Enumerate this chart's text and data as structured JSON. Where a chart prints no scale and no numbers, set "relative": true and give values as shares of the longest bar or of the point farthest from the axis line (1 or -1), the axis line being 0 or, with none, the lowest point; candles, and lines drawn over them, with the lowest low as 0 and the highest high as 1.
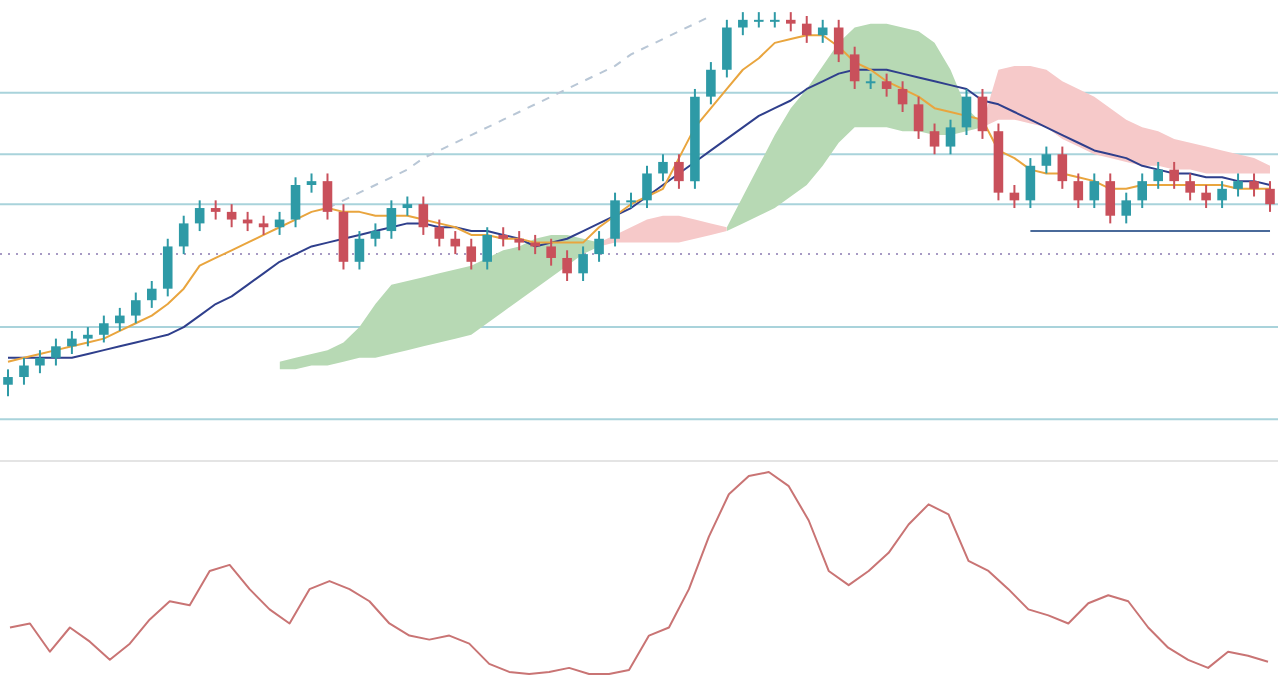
{
  "chart_data": [
    {
      "type": "candlestick",
      "relative": true,
      "tick_labels": false,
      "grid": false,
      "legend": false,
      "categories": [
        null,
        null,
        null,
        null,
        null,
        null,
        null,
        null,
        null,
        null,
        null,
        null,
        null,
        null,
        null,
        null,
        null,
        null,
        null,
        null,
        null,
        null,
        null,
        null,
        null,
        null,
        null,
        null,
        null,
        null,
        null,
        null,
        null,
        null,
        null,
        null,
        null,
        null,
        null,
        null,
        null,
        null,
        null,
        null,
        null,
        null,
        null,
        null,
        null,
        null,
        null,
        null,
        null,
        null,
        null,
        null,
        null,
        null,
        null,
        null,
        null,
        null,
        null,
        null,
        null,
        null,
        null,
        null,
        null,
        null,
        null,
        null,
        null,
        null,
        null,
        null,
        null,
        null,
        null,
        null
      ],
      "ohlc": [
        [
          0.03,
          0.07,
          0.0,
          0.05
        ],
        [
          0.05,
          0.1,
          0.03,
          0.08
        ],
        [
          0.08,
          0.12,
          0.06,
          0.1
        ],
        [
          0.1,
          0.15,
          0.08,
          0.13
        ],
        [
          0.13,
          0.17,
          0.11,
          0.15
        ],
        [
          0.15,
          0.18,
          0.13,
          0.16
        ],
        [
          0.16,
          0.21,
          0.14,
          0.19
        ],
        [
          0.19,
          0.23,
          0.17,
          0.21
        ],
        [
          0.21,
          0.27,
          0.19,
          0.25
        ],
        [
          0.25,
          0.3,
          0.23,
          0.28
        ],
        [
          0.28,
          0.41,
          0.26,
          0.39
        ],
        [
          0.39,
          0.47,
          0.37,
          0.45
        ],
        [
          0.45,
          0.51,
          0.43,
          0.49
        ],
        [
          0.49,
          0.51,
          0.46,
          0.48
        ],
        [
          0.48,
          0.5,
          0.44,
          0.46
        ],
        [
          0.46,
          0.48,
          0.43,
          0.45
        ],
        [
          0.45,
          0.47,
          0.42,
          0.44
        ],
        [
          0.44,
          0.48,
          0.42,
          0.46
        ],
        [
          0.46,
          0.57,
          0.44,
          0.55
        ],
        [
          0.55,
          0.58,
          0.53,
          0.56
        ],
        [
          0.56,
          0.58,
          0.46,
          0.48
        ],
        [
          0.48,
          0.5,
          0.33,
          0.35
        ],
        [
          0.35,
          0.43,
          0.33,
          0.41
        ],
        [
          0.41,
          0.45,
          0.39,
          0.43
        ],
        [
          0.43,
          0.51,
          0.41,
          0.49
        ],
        [
          0.49,
          0.52,
          0.47,
          0.5
        ],
        [
          0.5,
          0.52,
          0.42,
          0.44
        ],
        [
          0.44,
          0.46,
          0.39,
          0.41
        ],
        [
          0.41,
          0.43,
          0.37,
          0.39
        ],
        [
          0.39,
          0.41,
          0.33,
          0.35
        ],
        [
          0.35,
          0.44,
          0.33,
          0.42
        ],
        [
          0.42,
          0.44,
          0.39,
          0.41
        ],
        [
          0.41,
          0.43,
          0.38,
          0.4
        ],
        [
          0.4,
          0.42,
          0.37,
          0.39
        ],
        [
          0.39,
          0.41,
          0.34,
          0.36
        ],
        [
          0.36,
          0.38,
          0.3,
          0.32
        ],
        [
          0.32,
          0.39,
          0.3,
          0.37
        ],
        [
          0.37,
          0.43,
          0.35,
          0.41
        ],
        [
          0.41,
          0.53,
          0.39,
          0.51
        ],
        [
          0.51,
          0.53,
          0.49,
          0.51
        ],
        [
          0.51,
          0.6,
          0.49,
          0.58
        ],
        [
          0.58,
          0.63,
          0.56,
          0.61
        ],
        [
          0.61,
          0.63,
          0.54,
          0.56
        ],
        [
          0.56,
          0.8,
          0.54,
          0.78
        ],
        [
          0.78,
          0.87,
          0.76,
          0.85
        ],
        [
          0.85,
          0.98,
          0.83,
          0.96
        ],
        [
          0.96,
          1.0,
          0.94,
          0.98
        ],
        [
          0.98,
          1.0,
          0.96,
          0.98
        ],
        [
          0.98,
          1.0,
          0.96,
          0.98
        ],
        [
          0.98,
          1.0,
          0.95,
          0.97
        ],
        [
          0.97,
          0.99,
          0.92,
          0.94
        ],
        [
          0.94,
          0.98,
          0.92,
          0.96
        ],
        [
          0.96,
          0.98,
          0.87,
          0.89
        ],
        [
          0.89,
          0.91,
          0.8,
          0.82
        ],
        [
          0.82,
          0.84,
          0.8,
          0.82
        ],
        [
          0.82,
          0.84,
          0.78,
          0.8
        ],
        [
          0.8,
          0.82,
          0.74,
          0.76
        ],
        [
          0.76,
          0.78,
          0.67,
          0.69
        ],
        [
          0.69,
          0.71,
          0.63,
          0.65
        ],
        [
          0.65,
          0.72,
          0.63,
          0.7
        ],
        [
          0.7,
          0.8,
          0.68,
          0.78
        ],
        [
          0.78,
          0.8,
          0.67,
          0.69
        ],
        [
          0.69,
          0.71,
          0.51,
          0.53
        ],
        [
          0.53,
          0.55,
          0.49,
          0.51
        ],
        [
          0.51,
          0.62,
          0.49,
          0.6
        ],
        [
          0.6,
          0.65,
          0.58,
          0.63
        ],
        [
          0.63,
          0.65,
          0.54,
          0.56
        ],
        [
          0.56,
          0.58,
          0.49,
          0.51
        ],
        [
          0.51,
          0.58,
          0.49,
          0.56
        ],
        [
          0.56,
          0.58,
          0.45,
          0.47
        ],
        [
          0.47,
          0.53,
          0.45,
          0.51
        ],
        [
          0.51,
          0.58,
          0.49,
          0.56
        ],
        [
          0.56,
          0.61,
          0.54,
          0.59
        ],
        [
          0.59,
          0.61,
          0.54,
          0.56
        ],
        [
          0.56,
          0.58,
          0.51,
          0.53
        ],
        [
          0.53,
          0.55,
          0.49,
          0.51
        ],
        [
          0.51,
          0.56,
          0.49,
          0.54
        ],
        [
          0.54,
          0.58,
          0.52,
          0.56
        ],
        [
          0.56,
          0.58,
          0.52,
          0.54
        ],
        [
          0.54,
          0.56,
          0.48,
          0.5
        ]
      ],
      "series": [
        {
          "type": "line",
          "color": "#e9a53e",
          "values": [
            0.09,
            0.1,
            0.11,
            0.12,
            0.13,
            0.14,
            0.15,
            0.17,
            0.19,
            0.21,
            0.24,
            0.28,
            0.34,
            0.36,
            0.38,
            0.4,
            0.42,
            0.44,
            0.46,
            0.48,
            0.49,
            0.48,
            0.48,
            0.47,
            0.47,
            0.47,
            0.46,
            0.45,
            0.44,
            0.42,
            0.42,
            0.41,
            0.41,
            0.4,
            0.4,
            0.4,
            0.4,
            0.44,
            0.47,
            0.5,
            0.52,
            0.54,
            0.62,
            0.7,
            0.75,
            0.8,
            0.85,
            0.88,
            0.92,
            0.93,
            0.94,
            0.94,
            0.91,
            0.87,
            0.85,
            0.82,
            0.8,
            0.78,
            0.75,
            0.74,
            0.73,
            0.72,
            0.64,
            0.62,
            0.59,
            0.58,
            0.58,
            0.57,
            0.56,
            0.54,
            0.54,
            0.55,
            0.55,
            0.55,
            0.55,
            0.55,
            0.55,
            0.54,
            0.54,
            0.54
          ]
        },
        {
          "type": "line",
          "color": "#2f3f8c",
          "values": [
            0.1,
            0.1,
            0.1,
            0.1,
            0.1,
            0.11,
            0.12,
            0.13,
            0.14,
            0.15,
            0.16,
            0.18,
            0.21,
            0.24,
            0.26,
            0.29,
            0.32,
            0.35,
            0.37,
            0.39,
            0.4,
            0.41,
            0.42,
            0.43,
            0.44,
            0.45,
            0.45,
            0.44,
            0.44,
            0.43,
            0.43,
            0.42,
            0.41,
            0.39,
            0.4,
            0.41,
            0.43,
            0.45,
            0.47,
            0.49,
            0.52,
            0.55,
            0.58,
            0.61,
            0.64,
            0.67,
            0.7,
            0.73,
            0.75,
            0.77,
            0.8,
            0.82,
            0.84,
            0.85,
            0.85,
            0.85,
            0.84,
            0.83,
            0.82,
            0.81,
            0.8,
            0.77,
            0.76,
            0.74,
            0.72,
            0.7,
            0.68,
            0.66,
            0.64,
            0.63,
            0.62,
            0.6,
            0.59,
            0.58,
            0.58,
            0.57,
            0.57,
            0.56,
            0.56,
            0.55
          ]
        },
        {
          "type": "line",
          "color": "#b7d9b4",
          "values": [
            null,
            null,
            null,
            null,
            null,
            null,
            null,
            null,
            null,
            null,
            null,
            null,
            null,
            null,
            null,
            null,
            null,
            null,
            null,
            null,
            null,
            null,
            null,
            null,
            null,
            null,
            null,
            null,
            null,
            null,
            null,
            null,
            null,
            null,
            null,
            null,
            null,
            null,
            null,
            null,
            null,
            null,
            null,
            null,
            null,
            null,
            null,
            null,
            null,
            null,
            null,
            null,
            null,
            null,
            null,
            null,
            null,
            null,
            null,
            null,
            null,
            null,
            null,
            null,
            null,
            null,
            null,
            null,
            null,
            null,
            null,
            null,
            null,
            null,
            null,
            null,
            null,
            null,
            null,
            null
          ],
          "lower": [
            null,
            null,
            null,
            null,
            null,
            null,
            null,
            null,
            null,
            null,
            null,
            null,
            null,
            null,
            null,
            null,
            null,
            0.07,
            0.07,
            0.08,
            0.08,
            0.09,
            0.1,
            0.1,
            0.11,
            0.12,
            0.13,
            0.14,
            0.15,
            0.16,
            0.19,
            0.22,
            0.25,
            0.28,
            0.31,
            0.34,
            0.37,
            0.39,
            null,
            null,
            null,
            null,
            null,
            null,
            null,
            0.43,
            0.45,
            0.47,
            0.49,
            0.52,
            0.55,
            0.6,
            0.66,
            0.7,
            0.7,
            0.7,
            0.69,
            0.69,
            0.68,
            0.68,
            0.69,
            0.7,
            null,
            null,
            null,
            null,
            null,
            null,
            null,
            null,
            null,
            null,
            null,
            null,
            null,
            null,
            null,
            null,
            null,
            null
          ],
          "upper": [
            null,
            null,
            null,
            null,
            null,
            null,
            null,
            null,
            null,
            null,
            null,
            null,
            null,
            null,
            null,
            null,
            null,
            0.09,
            0.1,
            0.11,
            0.12,
            0.14,
            0.18,
            0.24,
            0.29,
            0.3,
            0.31,
            0.32,
            0.33,
            0.34,
            0.36,
            0.38,
            0.39,
            0.41,
            0.42,
            0.42,
            0.41,
            0.4,
            null,
            null,
            null,
            null,
            null,
            null,
            null,
            0.44,
            0.52,
            0.6,
            0.68,
            0.75,
            0.8,
            0.86,
            0.92,
            0.96,
            0.97,
            0.97,
            0.96,
            0.95,
            0.92,
            0.85,
            0.75,
            0.71,
            null,
            null,
            null,
            null,
            null,
            null,
            null,
            null,
            null,
            null,
            null,
            null,
            null,
            null,
            null,
            null,
            null,
            null
          ]
        },
        {
          "type": "line",
          "color": "#f6c9c9",
          "values": [
            null,
            null,
            null,
            null,
            null,
            null,
            null,
            null,
            null,
            null,
            null,
            null,
            null,
            null,
            null,
            null,
            null,
            null,
            null,
            null,
            null,
            null,
            null,
            null,
            null,
            null,
            null,
            null,
            null,
            null,
            null,
            null,
            null,
            null,
            null,
            null,
            null,
            null,
            null,
            null,
            null,
            null,
            null,
            null,
            null,
            null,
            null,
            null,
            null,
            null,
            null,
            null,
            null,
            null,
            null,
            null,
            null,
            null,
            null,
            null,
            null,
            null,
            null,
            null,
            null,
            null,
            null,
            null,
            null,
            null,
            null,
            null,
            null,
            null,
            null,
            null,
            null,
            null,
            null,
            null
          ],
          "lower": [
            null,
            null,
            null,
            null,
            null,
            null,
            null,
            null,
            null,
            null,
            null,
            null,
            null,
            null,
            null,
            null,
            null,
            null,
            null,
            null,
            null,
            null,
            null,
            null,
            null,
            null,
            null,
            null,
            null,
            null,
            null,
            null,
            null,
            null,
            null,
            null,
            null,
            0.39,
            0.4,
            0.4,
            0.4,
            0.4,
            0.4,
            0.41,
            0.42,
            0.43,
            null,
            null,
            null,
            null,
            null,
            null,
            null,
            null,
            null,
            null,
            null,
            null,
            null,
            null,
            null,
            0.7,
            0.72,
            0.72,
            0.71,
            0.7,
            0.67,
            0.65,
            0.63,
            0.62,
            0.61,
            0.6,
            0.6,
            0.59,
            0.59,
            0.58,
            0.58,
            0.58,
            0.58,
            0.58
          ],
          "upper": [
            null,
            null,
            null,
            null,
            null,
            null,
            null,
            null,
            null,
            null,
            null,
            null,
            null,
            null,
            null,
            null,
            null,
            null,
            null,
            null,
            null,
            null,
            null,
            null,
            null,
            null,
            null,
            null,
            null,
            null,
            null,
            null,
            null,
            null,
            null,
            null,
            null,
            0.4,
            0.42,
            0.44,
            0.46,
            0.47,
            0.47,
            0.46,
            0.45,
            0.44,
            null,
            null,
            null,
            null,
            null,
            null,
            null,
            null,
            null,
            null,
            null,
            null,
            null,
            null,
            null,
            0.71,
            0.85,
            0.86,
            0.86,
            0.85,
            0.82,
            0.8,
            0.78,
            0.75,
            0.72,
            0.7,
            0.69,
            0.67,
            0.66,
            0.65,
            0.64,
            0.63,
            0.62,
            0.6
          ]
        },
        {
          "type": "line",
          "color": "#b9c7d6",
          "line_style": "dashed",
          "values": [
            null,
            null,
            null,
            null,
            null,
            null,
            null,
            null,
            null,
            null,
            null,
            null,
            null,
            null,
            null,
            null,
            null,
            null,
            null,
            null,
            0.49,
            0.51,
            0.53,
            0.55,
            0.57,
            0.59,
            0.62,
            0.64,
            0.66,
            0.68,
            0.7,
            0.72,
            0.74,
            0.76,
            0.78,
            0.8,
            0.82,
            0.84,
            0.86,
            0.89,
            0.91,
            0.93,
            0.95,
            0.97,
            0.99,
            null,
            null,
            null,
            null,
            null,
            null,
            null,
            null,
            null,
            null,
            null,
            null,
            null,
            null,
            null,
            null,
            null,
            null,
            null,
            null,
            null,
            null,
            null,
            null,
            null,
            null,
            null,
            null,
            null,
            null,
            null,
            null,
            null,
            null,
            null
          ]
        },
        {
          "type": "line",
          "color": "#4a6a9a",
          "values": [
            null,
            null,
            null,
            null,
            null,
            null,
            null,
            null,
            null,
            null,
            null,
            null,
            null,
            null,
            null,
            null,
            null,
            null,
            null,
            null,
            null,
            null,
            null,
            null,
            null,
            null,
            null,
            null,
            null,
            null,
            null,
            null,
            null,
            null,
            null,
            null,
            null,
            null,
            null,
            null,
            null,
            null,
            null,
            null,
            null,
            null,
            null,
            null,
            null,
            null,
            null,
            null,
            null,
            null,
            null,
            null,
            null,
            null,
            null,
            null,
            null,
            null,
            null,
            null,
            0.43,
            0.43,
            0.43,
            0.43,
            0.43,
            0.43,
            0.43,
            0.43,
            0.43,
            0.43,
            0.43,
            0.43,
            0.43,
            0.43,
            0.43,
            0.43
          ]
        }
      ],
      "ref_lines": [
        {
          "axis": "y",
          "value": 0.79,
          "color": "#a9d3db"
        },
        {
          "axis": "y",
          "value": 0.63,
          "color": "#a9d3db"
        },
        {
          "axis": "y",
          "value": 0.5,
          "color": "#a9d3db"
        },
        {
          "axis": "y",
          "value": 0.37,
          "color": "#a79ac4",
          "line_style": "dotted"
        },
        {
          "axis": "y",
          "value": 0.18,
          "color": "#a9d3db"
        },
        {
          "axis": "y",
          "value": -0.06,
          "color": "#a9d3db"
        }
      ]
    },
    {
      "type": "line",
      "relative": true,
      "tick_labels": false,
      "grid": false,
      "legend": false,
      "categories": [
        null,
        null,
        null,
        null,
        null,
        null,
        null,
        null,
        null,
        null,
        null,
        null,
        null,
        null,
        null,
        null,
        null,
        null,
        null,
        null,
        null,
        null,
        null,
        null,
        null,
        null,
        null,
        null,
        null,
        null,
        null,
        null,
        null,
        null,
        null,
        null,
        null,
        null,
        null,
        null,
        null,
        null,
        null,
        null,
        null,
        null,
        null,
        null,
        null,
        null,
        null,
        null,
        null,
        null,
        null,
        null,
        null,
        null,
        null,
        null,
        null,
        null,
        null,
        null
      ],
      "series": [
        {
          "color": "#c97474",
          "values": [
            0.23,
            0.25,
            0.11,
            0.23,
            0.16,
            0.07,
            0.15,
            0.27,
            0.36,
            0.34,
            0.51,
            0.54,
            0.42,
            0.32,
            0.25,
            0.42,
            0.46,
            0.42,
            0.36,
            0.25,
            0.19,
            0.17,
            0.19,
            0.15,
            0.05,
            0.01,
            0,
            0.01,
            0.03,
            0,
            0,
            0.02,
            0.19,
            0.23,
            0.42,
            0.68,
            0.89,
            0.98,
            1.0,
            0.93,
            0.76,
            0.51,
            0.44,
            0.51,
            0.6,
            0.74,
            0.84,
            0.79,
            0.56,
            0.51,
            0.42,
            0.32,
            0.29,
            0.25,
            0.35,
            0.39,
            0.36,
            0.23,
            0.13,
            0.07,
            0.03,
            0.11,
            0.09,
            0.06
          ]
        }
      ]
    }
  ]
}
